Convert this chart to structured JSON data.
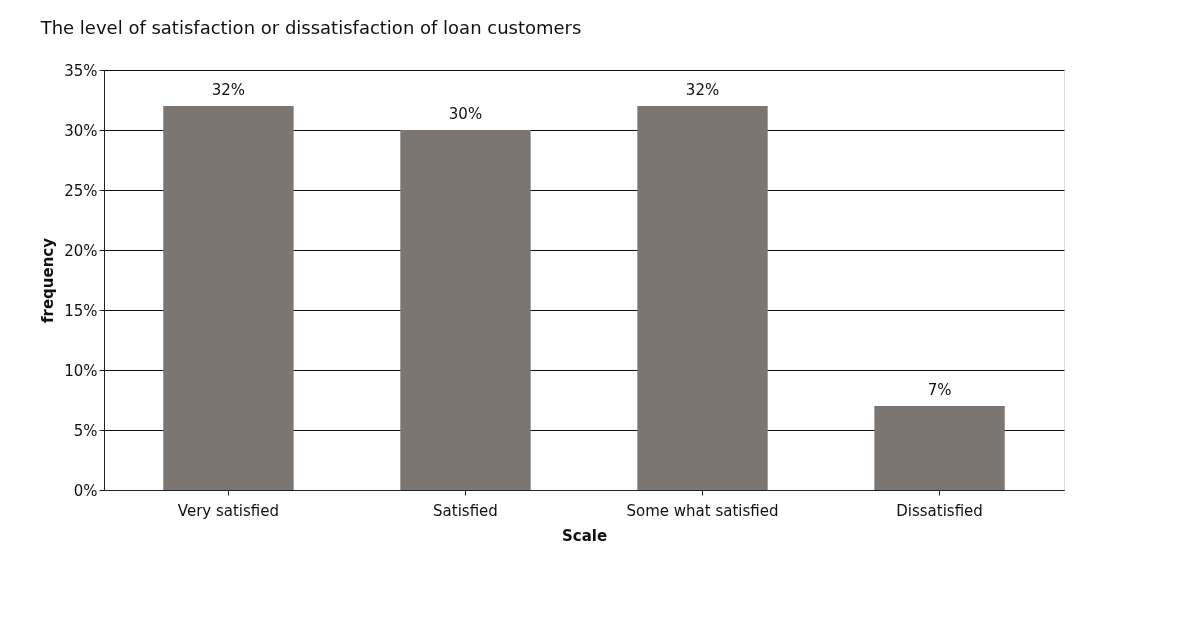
{
  "chart_data": {
    "type": "bar",
    "title": "The level of satisfaction or dissatisfaction of loan customers",
    "xlabel": "Scale",
    "ylabel": "frequency",
    "categories": [
      "Very satisfied",
      "Satisfied",
      "Some what satisfied",
      "Dissatisfied"
    ],
    "values": [
      32,
      30,
      32,
      7
    ],
    "value_labels": [
      "32%",
      "30%",
      "32%",
      "7%"
    ],
    "color": "#7b7672",
    "ylim": [
      0,
      35
    ],
    "yticks": [
      {
        "value": 0,
        "label": "0%"
      },
      {
        "value": 5,
        "label": "5%"
      },
      {
        "value": 10,
        "label": "10%"
      },
      {
        "value": 15,
        "label": "15%"
      },
      {
        "value": 20,
        "label": "20%"
      },
      {
        "value": 25,
        "label": "25%"
      },
      {
        "value": 30,
        "label": "30%"
      },
      {
        "value": 35,
        "label": "35%"
      }
    ],
    "grid": "y"
  }
}
